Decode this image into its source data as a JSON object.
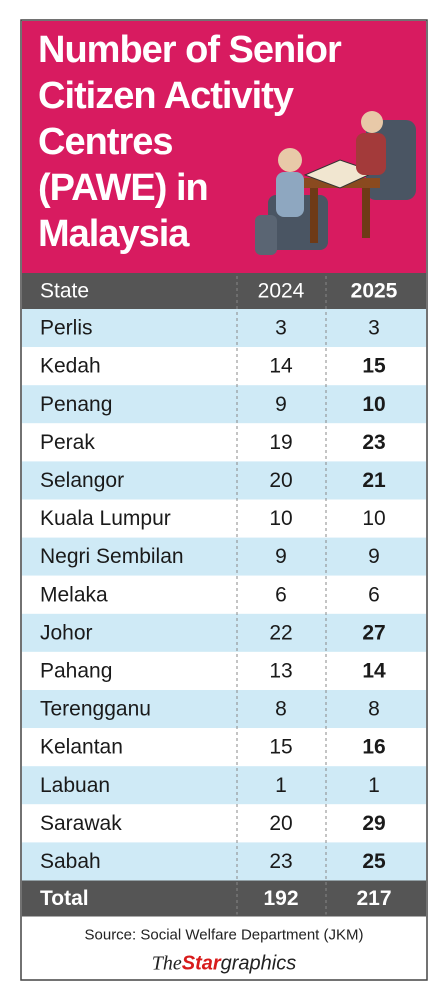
{
  "header": {
    "title_lines": [
      "Number of Senior",
      "Citizen Activity",
      "Centres",
      "(PAWE) in",
      "Malaysia"
    ]
  },
  "table": {
    "columns": [
      "State",
      "2024",
      "2025"
    ],
    "rows": [
      [
        "Perlis",
        3,
        3
      ],
      [
        "Kedah",
        14,
        15
      ],
      [
        "Penang",
        9,
        10
      ],
      [
        "Perak",
        19,
        23
      ],
      [
        "Selangor",
        20,
        21
      ],
      [
        "Kuala Lumpur",
        10,
        10
      ],
      [
        "Negri Sembilan",
        9,
        9
      ],
      [
        "Melaka",
        6,
        6
      ],
      [
        "Johor",
        22,
        27
      ],
      [
        "Pahang",
        13,
        14
      ],
      [
        "Terengganu",
        8,
        8
      ],
      [
        "Kelantan",
        15,
        16
      ],
      [
        "Labuan",
        1,
        1
      ],
      [
        "Sarawak",
        20,
        29
      ],
      [
        "Sabah",
        23,
        25
      ]
    ],
    "total": [
      "Total",
      192,
      217
    ]
  },
  "footer": {
    "source": "Source: Social Welfare Department (JKM)",
    "logo": {
      "prefix": "The",
      "brand": "Star",
      "suffix": "graphics"
    }
  }
}
